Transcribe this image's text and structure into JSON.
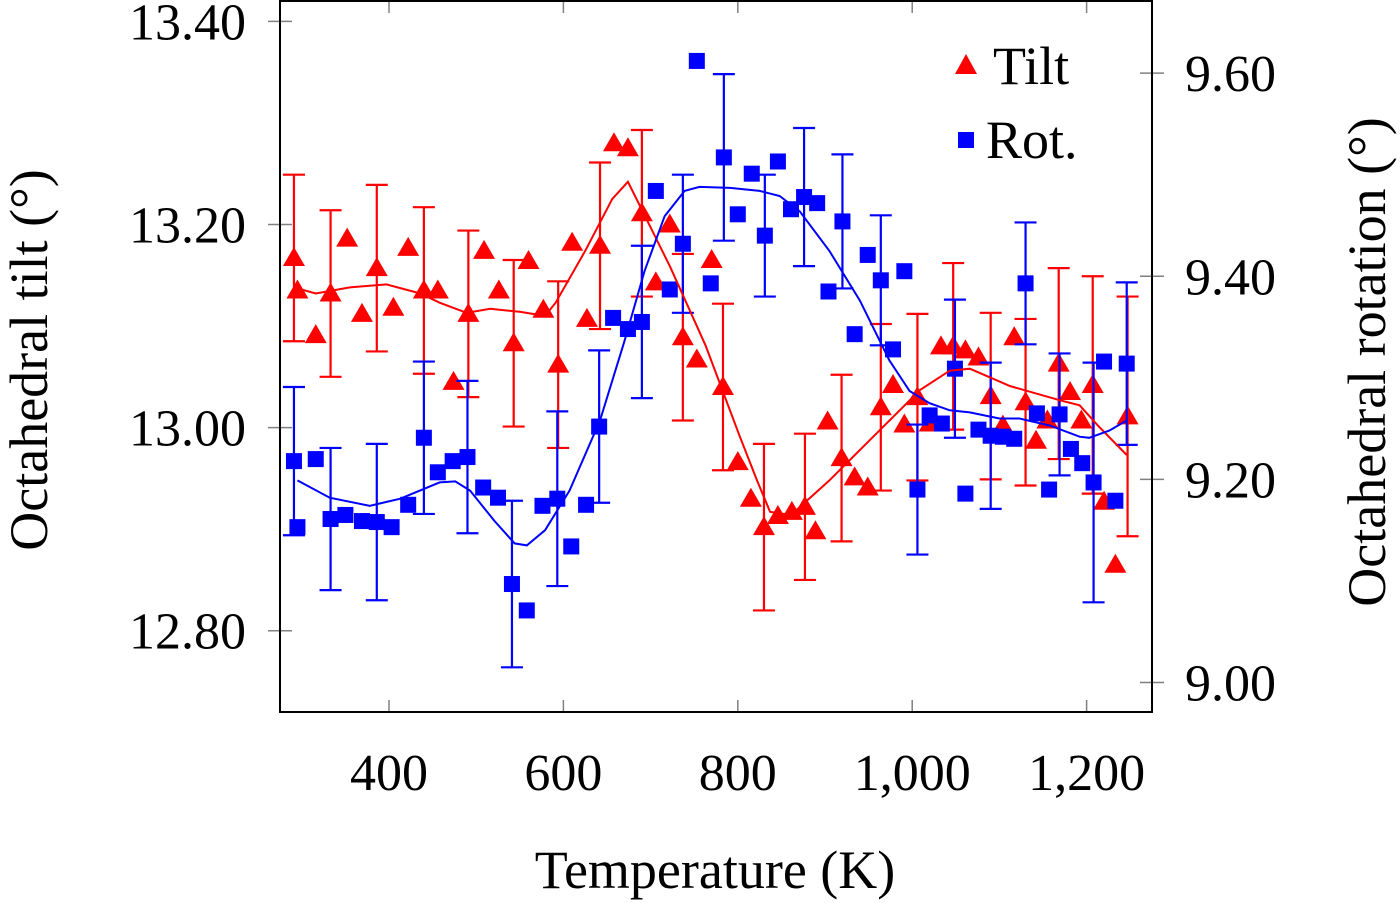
{
  "chart_data": {
    "type": "scatter",
    "xlabel": "Temperature (K)",
    "ylabel_left": "Octahedral tilt (°)",
    "ylabel_right": "Octahedral rotation (°)",
    "xlim": [
      275,
      1275
    ],
    "ylim_left": [
      12.72,
      13.42
    ],
    "ylim_right": [
      8.971,
      9.671
    ],
    "x_ticks": [
      {
        "v": 400,
        "label": "400"
      },
      {
        "v": 600,
        "label": "600"
      },
      {
        "v": 800,
        "label": "800"
      },
      {
        "v": 1000,
        "label": "1,000"
      },
      {
        "v": 1200,
        "label": "1,200"
      }
    ],
    "y_left_ticks": [
      {
        "v": 12.8,
        "label": "12.80"
      },
      {
        "v": 13.0,
        "label": "13.00"
      },
      {
        "v": 13.2,
        "label": "13.20"
      },
      {
        "v": 13.4,
        "label": "13.40"
      }
    ],
    "y_right_ticks": [
      {
        "v": 9.0,
        "label": "9.00"
      },
      {
        "v": 9.2,
        "label": "9.20"
      },
      {
        "v": 9.4,
        "label": "9.40"
      },
      {
        "v": 9.6,
        "label": "9.60"
      }
    ],
    "grid": false,
    "legend_position": "top-right",
    "series": [
      {
        "name": "Tilt",
        "axis": "left",
        "color": "#ff0000",
        "marker": "triangle",
        "x": [
          291,
          295,
          316,
          333,
          352,
          369,
          386,
          405,
          422,
          440,
          456,
          474,
          491,
          509,
          526,
          543,
          560,
          577,
          594,
          610,
          627,
          642,
          658,
          674,
          690,
          706,
          722,
          737,
          753,
          770,
          783,
          800,
          815,
          830,
          846,
          862,
          877,
          889,
          903,
          919,
          934,
          949,
          964,
          978,
          991,
          1006,
          1020,
          1033,
          1047,
          1061,
          1076,
          1090,
          1104,
          1117,
          1130,
          1142,
          1155,
          1168,
          1181,
          1194,
          1207,
          1220,
          1233,
          1247
        ],
        "y": [
          13.167,
          13.135,
          13.091,
          13.132,
          13.186,
          13.112,
          13.157,
          13.118,
          13.177,
          13.135,
          13.135,
          13.045,
          13.112,
          13.174,
          13.135,
          13.083,
          13.164,
          13.116,
          13.062,
          13.182,
          13.107,
          13.179,
          13.28,
          13.275,
          13.211,
          13.143,
          13.2,
          13.089,
          13.067,
          13.165,
          13.04,
          12.966,
          12.93,
          12.902,
          12.913,
          12.917,
          12.922,
          12.898,
          13.006,
          12.97,
          12.951,
          12.941,
          13.02,
          13.042,
          13.003,
          13.03,
          13.004,
          13.08,
          13.08,
          13.076,
          13.069,
          13.031,
          13.002,
          13.089,
          13.025,
          12.987,
          13.007,
          13.063,
          13.035,
          13.007,
          13.042,
          12.927,
          12.865,
          13.011
        ],
        "err": [
          0.082,
          null,
          null,
          0.082,
          null,
          null,
          0.082,
          null,
          null,
          0.082,
          null,
          null,
          0.082,
          null,
          null,
          0.082,
          null,
          null,
          0.082,
          null,
          null,
          0.082,
          null,
          null,
          0.082,
          null,
          null,
          0.082,
          null,
          null,
          0.082,
          null,
          null,
          0.082,
          null,
          null,
          0.072,
          null,
          null,
          0.082,
          null,
          null,
          0.082,
          null,
          null,
          0.082,
          null,
          null,
          0.082,
          null,
          null,
          0.082,
          null,
          null,
          0.082,
          null,
          null,
          0.094,
          null,
          null,
          0.107,
          null,
          null,
          0.118
        ]
      },
      {
        "name": "Rot.",
        "axis": "right",
        "color": "#0000ff",
        "marker": "square",
        "x": [
          291,
          295,
          316,
          333,
          350,
          369,
          386,
          403,
          422,
          440,
          456,
          473,
          490,
          508,
          525,
          541,
          558,
          576,
          593,
          609,
          626,
          641,
          657,
          674,
          690,
          706,
          722,
          737,
          753,
          769,
          784,
          800,
          816,
          831,
          846,
          861,
          876,
          891,
          904,
          920,
          934,
          949,
          964,
          978,
          991,
          1006,
          1020,
          1034,
          1049,
          1061,
          1076,
          1090,
          1104,
          1117,
          1130,
          1143,
          1157,
          1169,
          1182,
          1195,
          1208,
          1220,
          1233,
          1246
        ],
        "y": [
          9.218,
          9.153,
          9.22,
          9.161,
          9.165,
          9.159,
          9.158,
          9.153,
          9.175,
          9.241,
          9.207,
          9.218,
          9.222,
          9.192,
          9.182,
          9.097,
          9.071,
          9.174,
          9.181,
          9.134,
          9.175,
          9.252,
          9.359,
          9.348,
          9.355,
          9.484,
          9.387,
          9.432,
          9.612,
          9.393,
          9.517,
          9.461,
          9.501,
          9.44,
          9.513,
          9.466,
          9.478,
          9.472,
          9.385,
          9.454,
          9.343,
          9.421,
          9.396,
          9.328,
          9.405,
          9.19,
          9.263,
          9.255,
          9.309,
          9.186,
          9.249,
          9.243,
          9.242,
          9.24,
          9.393,
          9.265,
          9.19,
          9.264,
          9.23,
          9.216,
          9.197,
          9.316,
          9.179,
          9.314
        ],
        "err": [
          0.073,
          null,
          null,
          0.07,
          null,
          null,
          0.077,
          null,
          null,
          0.075,
          null,
          null,
          0.075,
          null,
          null,
          0.082,
          null,
          null,
          0.086,
          null,
          null,
          0.075,
          null,
          null,
          0.075,
          null,
          null,
          0.068,
          null,
          null,
          0.082,
          null,
          null,
          0.06,
          null,
          null,
          0.068,
          null,
          null,
          0.066,
          null,
          null,
          0.064,
          null,
          null,
          0.064,
          null,
          null,
          0.068,
          null,
          null,
          0.072,
          null,
          null,
          0.06,
          null,
          null,
          0.06,
          null,
          null,
          0.118,
          null,
          null,
          0.08
        ]
      },
      {
        "axis": "left",
        "color": "#ff0000",
        "type": "line",
        "x": [
          295,
          316,
          355,
          397,
          436,
          458,
          489,
          516,
          550,
          579,
          591,
          625,
          656,
          674,
          688,
          722,
          763,
          802,
          822,
          837,
          861,
          905,
          974,
          1009,
          1043,
          1066,
          1112,
          1169,
          1192,
          1213,
          1246
        ],
        "y": [
          13.137,
          13.132,
          13.138,
          13.141,
          13.132,
          13.123,
          13.113,
          13.117,
          13.114,
          13.11,
          13.123,
          13.174,
          13.225,
          13.242,
          13.218,
          13.159,
          13.081,
          12.992,
          12.948,
          12.917,
          12.914,
          12.948,
          13.007,
          13.037,
          13.056,
          13.058,
          13.041,
          13.027,
          13.022,
          13.002,
          12.973
        ]
      },
      {
        "axis": "right",
        "color": "#0000ff",
        "type": "line",
        "x": [
          295,
          332,
          378,
          413,
          458,
          476,
          493,
          521,
          544,
          558,
          579,
          607,
          642,
          670,
          693,
          716,
          739,
          756,
          791,
          825,
          848,
          871,
          905,
          940,
          974,
          997,
          1020,
          1043,
          1066,
          1100,
          1123,
          1158,
          1192,
          1203,
          1226,
          1246
        ],
        "y": [
          9.199,
          9.182,
          9.174,
          9.181,
          9.197,
          9.198,
          9.189,
          9.159,
          9.137,
          9.135,
          9.15,
          9.189,
          9.258,
          9.336,
          9.405,
          9.459,
          9.484,
          9.488,
          9.487,
          9.484,
          9.479,
          9.464,
          9.425,
          9.376,
          9.317,
          9.287,
          9.275,
          9.268,
          9.266,
          9.26,
          9.26,
          9.253,
          9.242,
          9.241,
          9.248,
          9.258
        ]
      }
    ]
  }
}
